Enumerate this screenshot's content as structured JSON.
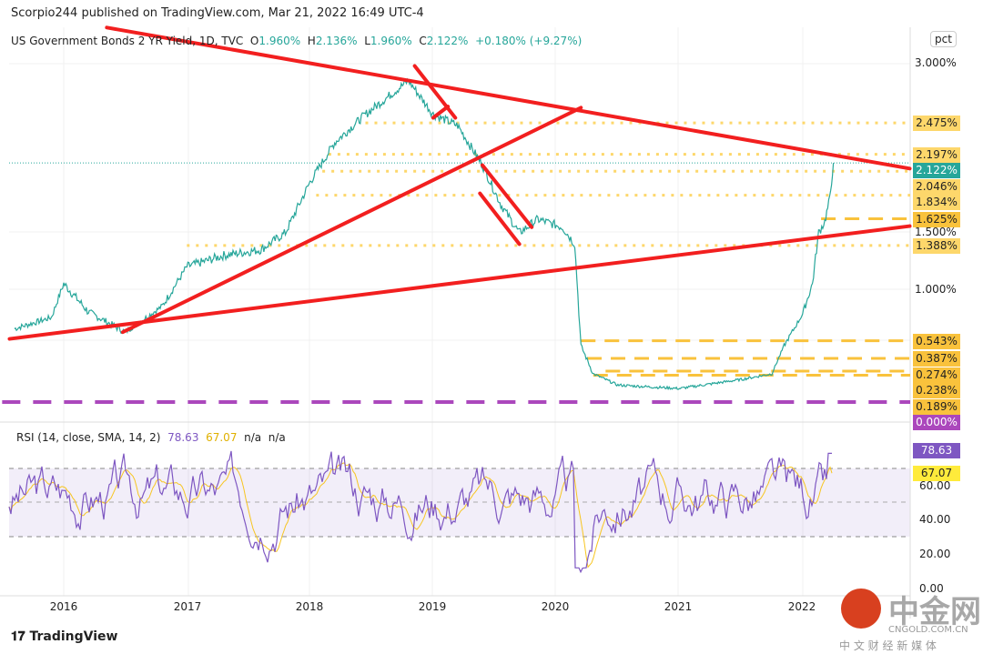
{
  "header": {
    "published": "Scorpio244 published on TradingView.com, Mar 21, 2022 16:49 UTC-4"
  },
  "legend": {
    "symbol": "US Government Bonds 2 YR Yield, 1D, TVC",
    "o_label": "O",
    "o": "1.960%",
    "h_label": "H",
    "h": "2.136%",
    "l_label": "L",
    "l": "1.960%",
    "c_label": "C",
    "c": "2.122%",
    "change": "+0.180% (+9.27%)"
  },
  "scale": {
    "mode": "pct",
    "ticks": [
      "3.000%",
      "1.500%",
      "1.000%"
    ],
    "price_labels": [
      {
        "text": "2.475%",
        "value": 2.475,
        "color": "#fdd76b"
      },
      {
        "text": "2.197%",
        "value": 2.197,
        "color": "#fdd76b"
      },
      {
        "text": "2.122%",
        "value": 2.122,
        "color": "#26a69a"
      },
      {
        "text": "2.046%",
        "value": 2.046,
        "color": "#fdd76b"
      },
      {
        "text": "1.834%",
        "value": 1.834,
        "color": "#fdd76b"
      },
      {
        "text": "1.625%",
        "value": 1.625,
        "color": "#f9c23c"
      },
      {
        "text": "1.388%",
        "value": 1.388,
        "color": "#fdd76b"
      },
      {
        "text": "0.543%",
        "value": 0.543,
        "color": "#f9c23c"
      },
      {
        "text": "0.387%",
        "value": 0.387,
        "color": "#f9c23c"
      },
      {
        "text": "0.274%",
        "value": 0.274,
        "color": "#f9c23c"
      },
      {
        "text": "0.238%",
        "value": 0.238,
        "color": "#f9c23c"
      },
      {
        "text": "0.189%",
        "value": 0.189,
        "color": "#f9c23c"
      },
      {
        "text": "0.000%",
        "value": 0,
        "color": "#ab47bc"
      }
    ]
  },
  "rsi": {
    "label": "RSI (14, close, SMA, 14, 2)",
    "value": "78.63",
    "sma": "67.07",
    "na1": "n/a",
    "na2": "n/a",
    "ticks": [
      "60.00",
      "40.00",
      "20.00",
      "0.00"
    ]
  },
  "x_axis": [
    "2016",
    "2017",
    "2018",
    "2019",
    "2020",
    "2021",
    "2022"
  ],
  "footer": {
    "brand": "TradingView"
  },
  "watermark": {
    "cn": "中金网",
    "domain": "CNGOLD.COM.CN",
    "sub": "中 文 财 经 新 媒 体"
  },
  "chart_data": {
    "type": "line",
    "title": "US Government Bonds 2 YR Yield",
    "ylabel": "%",
    "price_anchors": [
      [
        2015.6,
        0.65
      ],
      [
        2015.9,
        0.75
      ],
      [
        2016.0,
        1.05
      ],
      [
        2016.2,
        0.8
      ],
      [
        2016.5,
        0.62
      ],
      [
        2016.8,
        0.85
      ],
      [
        2017.0,
        1.2
      ],
      [
        2017.3,
        1.3
      ],
      [
        2017.6,
        1.35
      ],
      [
        2017.8,
        1.5
      ],
      [
        2018.0,
        1.95
      ],
      [
        2018.2,
        2.3
      ],
      [
        2018.45,
        2.55
      ],
      [
        2018.8,
        2.85
      ],
      [
        2019.0,
        2.55
      ],
      [
        2019.2,
        2.45
      ],
      [
        2019.4,
        2.1
      ],
      [
        2019.55,
        1.75
      ],
      [
        2019.7,
        1.5
      ],
      [
        2019.85,
        1.62
      ],
      [
        2020.05,
        1.55
      ],
      [
        2020.15,
        1.4
      ],
      [
        2020.2,
        0.5
      ],
      [
        2020.3,
        0.25
      ],
      [
        2020.5,
        0.15
      ],
      [
        2021.0,
        0.12
      ],
      [
        2021.5,
        0.2
      ],
      [
        2021.75,
        0.25
      ],
      [
        2021.85,
        0.5
      ],
      [
        2022.0,
        0.78
      ],
      [
        2022.08,
        1.05
      ],
      [
        2022.13,
        1.5
      ],
      [
        2022.18,
        1.6
      ],
      [
        2022.22,
        1.8
      ],
      [
        2022.25,
        2.12
      ]
    ],
    "trendlines": [
      [
        [
          2015.56,
          0.56
        ],
        [
          2022.87,
          1.56
        ]
      ],
      [
        [
          2016.35,
          3.32
        ],
        [
          2022.87,
          2.07
        ]
      ],
      [
        [
          2016.48,
          0.62
        ],
        [
          2020.2,
          2.61
        ]
      ],
      [
        [
          2018.85,
          2.98
        ],
        [
          2019.18,
          2.52
        ]
      ],
      [
        [
          2019.0,
          2.52
        ],
        [
          2019.12,
          2.62
        ]
      ],
      [
        [
          2019.4,
          2.1
        ],
        [
          2019.8,
          1.55
        ]
      ],
      [
        [
          2019.38,
          1.85
        ],
        [
          2019.7,
          1.4
        ]
      ]
    ],
    "dotted_levels": [
      [
        2.475,
        2018.45
      ],
      [
        2.197,
        2018.15
      ],
      [
        2.046,
        2018.1
      ],
      [
        1.834,
        2018.05
      ],
      [
        1.388,
        2017.0
      ]
    ],
    "dashed_levels": [
      [
        1.625,
        2022.15
      ],
      [
        0.543,
        2020.2
      ],
      [
        0.387,
        2020.25
      ],
      [
        0.274,
        2020.4
      ],
      [
        0.238,
        2020.3
      ],
      [
        0.0,
        2015.5
      ]
    ],
    "rsi_band": [
      30,
      70
    ],
    "rsi_last": 78.63,
    "rsi_sma_last": 67.07
  }
}
